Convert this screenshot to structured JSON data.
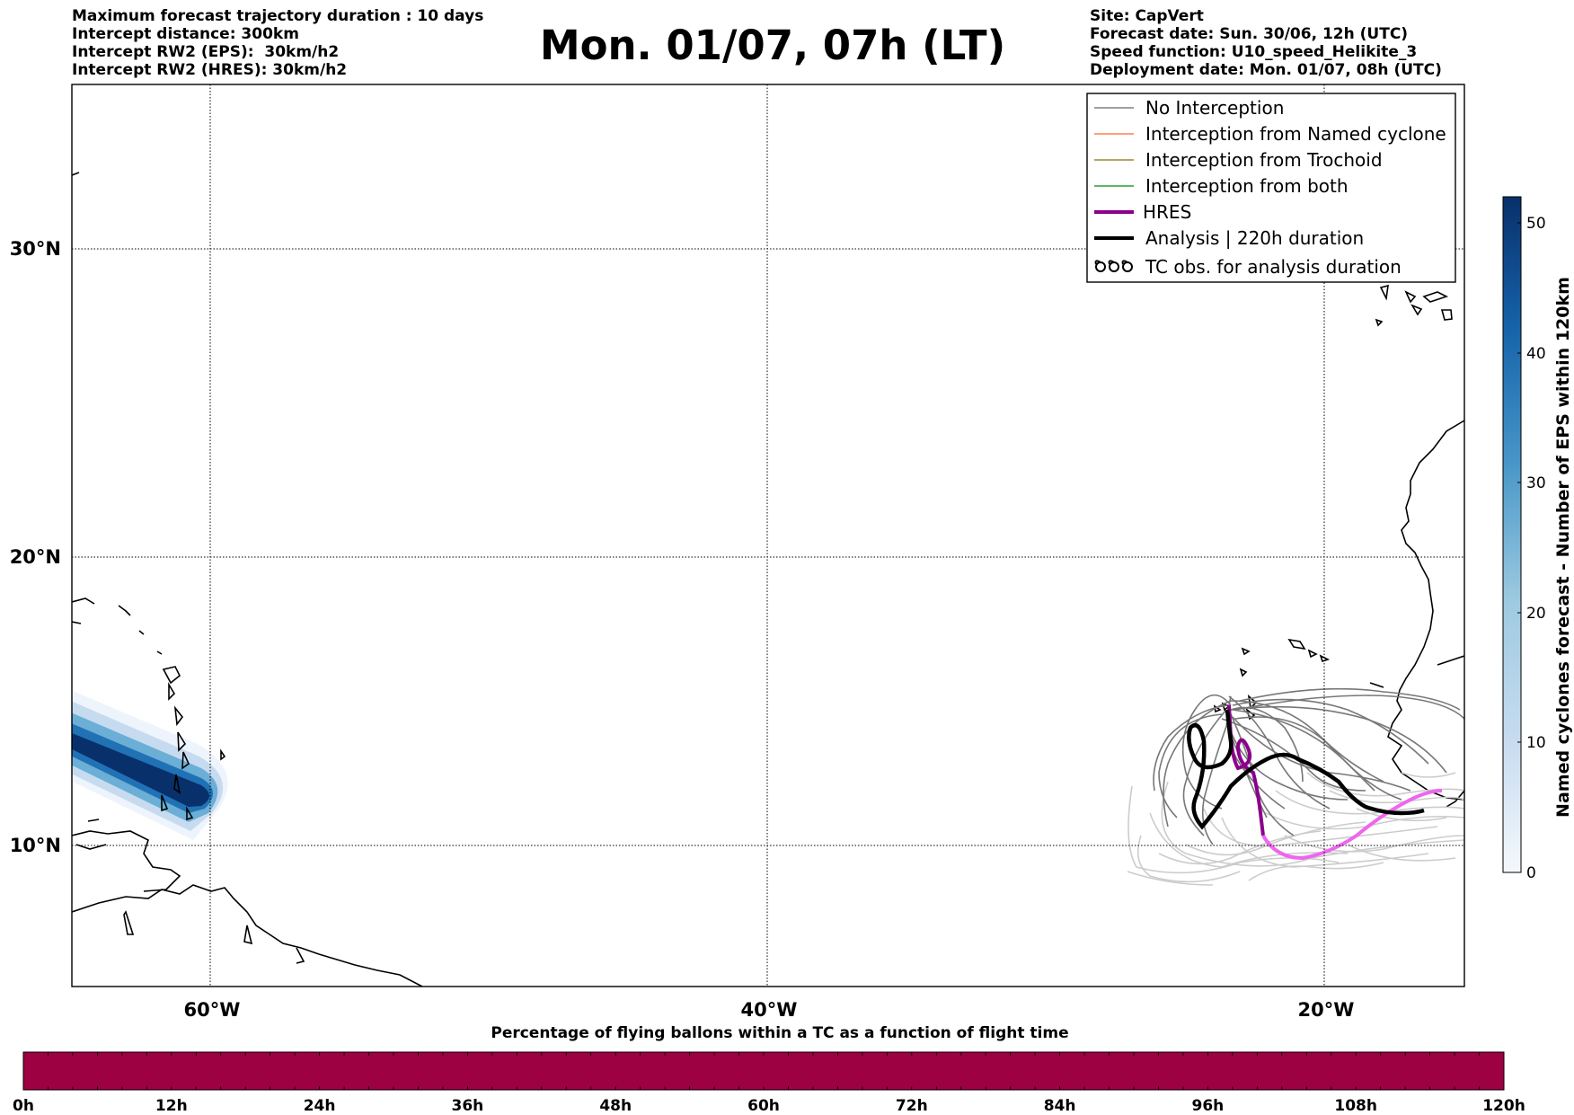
{
  "header": {
    "left": [
      "Maximum forecast trajectory duration : 10 days",
      "Intercept distance: 300km",
      "Intercept RW2 (EPS):  30km/h2",
      "Intercept RW2 (HRES): 30km/h2"
    ],
    "title": "Mon. 01/07, 07h (LT)",
    "right": [
      "Site: CapVert",
      "Forecast date: Sun. 30/06, 12h (UTC)",
      "Speed function: U10_speed_Helikite_3",
      "Deployment date: Mon. 01/07, 08h (UTC)"
    ]
  },
  "map": {
    "lat_labels": [
      "30°N",
      "20°N",
      "10°N"
    ],
    "lon_labels": [
      "60°W",
      "40°W",
      "20°W"
    ],
    "lon_range": [
      -65,
      -15
    ],
    "lat_range": [
      5.4,
      34.7
    ]
  },
  "legend": {
    "items": [
      {
        "label": "No Interception",
        "color": "#808080",
        "style": "thin"
      },
      {
        "label": "Interception from Named cyclone",
        "color": "#ff7f50",
        "style": "thin"
      },
      {
        "label": "Interception from Trochoid",
        "color": "#9a8a30",
        "style": "thin"
      },
      {
        "label": "Interception from both",
        "color": "#2ca02c",
        "style": "thin"
      },
      {
        "label": "HRES",
        "color": "#8b008b",
        "style": "thick"
      },
      {
        "label": "Analysis | 220h duration",
        "color": "#000000",
        "style": "thick"
      },
      {
        "label": "TC obs. for analysis duration",
        "color": "#000000",
        "style": "cyclone-symbol"
      }
    ]
  },
  "right_colorbar": {
    "label": "Named cyclones forecast - Number of EPS within 120km",
    "ticks": [
      "0",
      "10",
      "20",
      "30",
      "40",
      "50"
    ],
    "range": [
      0,
      52
    ]
  },
  "bottom_colorbar": {
    "title": "Percentage of flying ballons within a TC as a function of flight time",
    "ticks": [
      "0h",
      "12h",
      "24h",
      "36h",
      "48h",
      "60h",
      "72h",
      "84h",
      "96h",
      "108h",
      "120h"
    ],
    "fill_color": "#9e0142"
  },
  "colors": {
    "gridline": "#000000",
    "eps_no_intercept": "#777777",
    "eps_late": "#cccccc",
    "hres_early": "#8b008b",
    "hres_late": "#ee66ee",
    "analysis": "#000000",
    "cyclone_dark": "#08306b",
    "cyclone_light": "#deebf7"
  }
}
